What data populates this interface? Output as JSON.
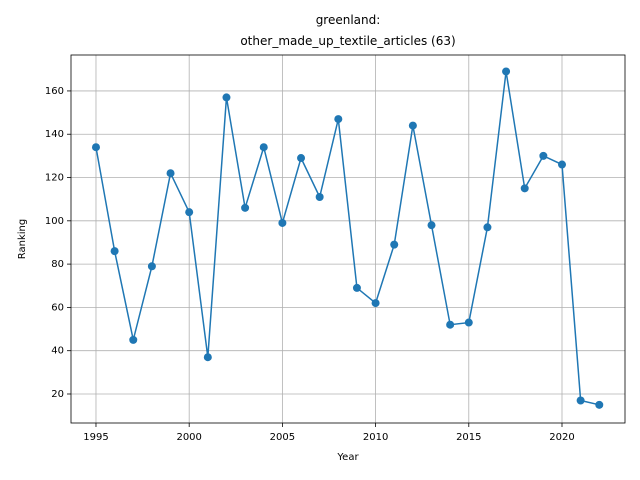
{
  "chart_data": {
    "type": "line",
    "title": "greenland:\nother_made_up_textile_articles (63)",
    "x_label": "Year",
    "y_label": "Ranking",
    "x": [
      1995,
      1996,
      1997,
      1998,
      1999,
      2000,
      2001,
      2002,
      2003,
      2004,
      2005,
      2006,
      2007,
      2008,
      2009,
      2010,
      2011,
      2012,
      2013,
      2014,
      2015,
      2016,
      2017,
      2018,
      2019,
      2020,
      2021,
      2022
    ],
    "series": [
      {
        "name": "Ranking",
        "color": "#1f77b4",
        "values": [
          134,
          86,
          45,
          79,
          122,
          104,
          37,
          157,
          106,
          134,
          99,
          129,
          111,
          147,
          69,
          62,
          89,
          144,
          98,
          52,
          53,
          97,
          169,
          115,
          130,
          126,
          17,
          15
        ]
      }
    ],
    "xlim": [
      1993.66,
      2023.38
    ],
    "ylim": [
      6.6,
      176.6
    ],
    "xticks": [
      1995,
      2000,
      2005,
      2010,
      2015,
      2020
    ],
    "yticks": [
      20,
      40,
      60,
      80,
      100,
      120,
      140,
      160
    ],
    "grid": true
  }
}
